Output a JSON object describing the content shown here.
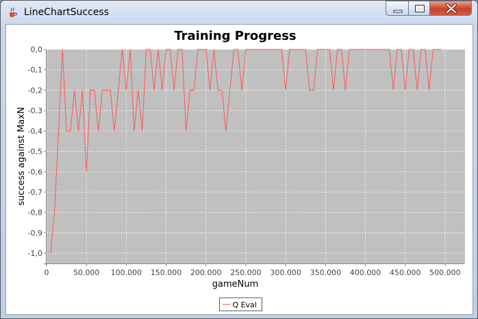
{
  "window": {
    "title": "LineChartSuccess",
    "icons": {
      "app": "java-cup-icon",
      "minimize": "minimize-icon",
      "maximize": "maximize-icon",
      "close": "close-icon"
    }
  },
  "chart_data": {
    "type": "line",
    "title": "Training Progress",
    "xlabel": "gameNum",
    "ylabel": "success against MaxN",
    "xlim": [
      0,
      525000
    ],
    "ylim": [
      -1.05,
      0.0
    ],
    "xticks": [
      0,
      50000,
      100000,
      150000,
      200000,
      250000,
      300000,
      350000,
      400000,
      450000,
      500000
    ],
    "xtick_labels": [
      "0",
      "50.000",
      "100.000",
      "150.000",
      "200.000",
      "250.000",
      "300.000",
      "350.000",
      "400.000",
      "450.000",
      "500.000"
    ],
    "yticks": [
      0.0,
      -0.1,
      -0.2,
      -0.3,
      -0.4,
      -0.5,
      -0.6,
      -0.7,
      -0.8,
      -0.9,
      -1.0
    ],
    "ytick_labels": [
      "0,0",
      "-0,1",
      "-0,2",
      "-0,3",
      "-0,4",
      "-0,5",
      "-0,6",
      "-0,7",
      "-0,8",
      "-0,9",
      "-1,0"
    ],
    "grid": true,
    "legend": "bottom-center",
    "colors": {
      "series": "#ff5555",
      "plot_background": "#c0c0c0",
      "grid": "#ffffff"
    },
    "series": [
      {
        "name": "Q Eval",
        "x": [
          5000,
          10000,
          15000,
          20000,
          25000,
          30000,
          35000,
          40000,
          45000,
          50000,
          55000,
          60000,
          65000,
          70000,
          75000,
          80000,
          85000,
          90000,
          95000,
          100000,
          105000,
          110000,
          115000,
          120000,
          125000,
          130000,
          135000,
          140000,
          145000,
          150000,
          155000,
          160000,
          165000,
          170000,
          175000,
          180000,
          185000,
          190000,
          195000,
          200000,
          205000,
          210000,
          215000,
          220000,
          225000,
          230000,
          235000,
          240000,
          245000,
          250000,
          255000,
          260000,
          265000,
          270000,
          275000,
          280000,
          285000,
          290000,
          295000,
          300000,
          305000,
          310000,
          315000,
          320000,
          325000,
          330000,
          335000,
          340000,
          345000,
          350000,
          355000,
          360000,
          365000,
          370000,
          375000,
          380000,
          385000,
          390000,
          395000,
          400000,
          405000,
          410000,
          415000,
          420000,
          425000,
          430000,
          435000,
          440000,
          445000,
          450000,
          455000,
          460000,
          465000,
          470000,
          475000,
          480000,
          485000,
          490000,
          495000
        ],
        "y": [
          -1.0,
          -0.8,
          -0.4,
          0.0,
          -0.4,
          -0.4,
          -0.2,
          -0.4,
          -0.2,
          -0.6,
          -0.2,
          -0.2,
          -0.4,
          -0.2,
          -0.2,
          -0.2,
          -0.4,
          -0.2,
          0.0,
          -0.2,
          0.0,
          -0.4,
          -0.2,
          -0.4,
          0.0,
          0.0,
          -0.2,
          0.0,
          -0.2,
          0.0,
          0.0,
          -0.2,
          0.0,
          0.0,
          -0.4,
          -0.2,
          -0.2,
          0.0,
          0.0,
          0.0,
          -0.2,
          0.0,
          -0.2,
          -0.2,
          -0.4,
          -0.2,
          0.0,
          0.0,
          -0.2,
          0.0,
          0.0,
          0.0,
          0.0,
          0.0,
          0.0,
          0.0,
          0.0,
          0.0,
          0.0,
          -0.2,
          0.0,
          0.0,
          0.0,
          0.0,
          0.0,
          -0.2,
          -0.2,
          0.0,
          0.0,
          0.0,
          0.0,
          -0.2,
          0.0,
          0.0,
          -0.2,
          0.0,
          0.0,
          0.0,
          0.0,
          0.0,
          0.0,
          0.0,
          0.0,
          0.0,
          0.0,
          0.0,
          -0.2,
          0.0,
          0.0,
          -0.2,
          0.0,
          0.0,
          -0.2,
          0.0,
          0.0,
          -0.2,
          0.0,
          0.0,
          0.0
        ]
      }
    ]
  }
}
